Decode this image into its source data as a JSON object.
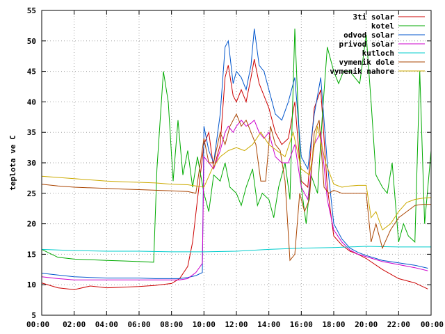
{
  "chart_data": {
    "type": "line",
    "ylabel": "teplota ve C",
    "xlim": [
      "00:00",
      "24:00"
    ],
    "ylim": [
      5,
      55
    ],
    "y_ticks": [
      5,
      10,
      15,
      20,
      25,
      30,
      35,
      40,
      45,
      50,
      55
    ],
    "x_ticks": [
      "00:00",
      "02:00",
      "04:00",
      "06:00",
      "08:00",
      "10:00",
      "12:00",
      "14:00",
      "16:00",
      "18:00",
      "20:00",
      "22:00",
      "00:00"
    ],
    "legend_position": "top-right",
    "series": [
      {
        "name": "3ti solar",
        "color": "#cc0000",
        "x": [
          0,
          1,
          2,
          3,
          4,
          5,
          6,
          7,
          8,
          8.5,
          9,
          9.3,
          9.6,
          10,
          10.3,
          10.6,
          11,
          11.3,
          11.5,
          11.8,
          12,
          12.3,
          12.6,
          12.9,
          13.1,
          13.4,
          13.7,
          14,
          14.4,
          14.8,
          15.2,
          15.6,
          16,
          16.4,
          16.8,
          17.2,
          17.6,
          18,
          18.5,
          19,
          19.5,
          20,
          21,
          22,
          23,
          23.8
        ],
        "y": [
          10.3,
          9.5,
          9.2,
          9.8,
          9.5,
          9.6,
          9.7,
          9.9,
          10.2,
          11,
          13,
          17,
          24,
          33,
          35,
          29,
          33,
          44,
          46,
          41,
          40,
          42,
          40,
          44,
          47,
          43,
          41,
          39,
          35,
          33,
          34,
          40,
          27,
          26,
          39,
          42,
          26,
          18,
          16.5,
          15.5,
          15,
          14.3,
          12.5,
          11,
          10.3,
          9.3
        ]
      },
      {
        "name": "kotel",
        "color": "#00aa00",
        "x": [
          0,
          1,
          2,
          3,
          4,
          5,
          6,
          6.9,
          7.1,
          7.5,
          7.8,
          8.1,
          8.4,
          8.7,
          9,
          9.3,
          9.6,
          10,
          10.3,
          10.6,
          11,
          11.3,
          11.6,
          12,
          12.3,
          12.6,
          13,
          13.3,
          13.6,
          14,
          14.3,
          14.6,
          15,
          15.3,
          15.6,
          16,
          16.3,
          16.6,
          17,
          17.3,
          17.6,
          18,
          18.3,
          18.6,
          19,
          19.3,
          19.6,
          20,
          20.3,
          20.6,
          21,
          21.3,
          21.6,
          22,
          22.3,
          22.6,
          23,
          23.3,
          23.6,
          24
        ],
        "y": [
          15.8,
          14.5,
          14.2,
          14.1,
          14,
          13.9,
          13.8,
          13.7,
          29,
          45,
          40,
          27,
          37,
          28,
          32,
          26,
          31,
          25,
          22,
          28,
          27,
          30,
          26,
          25,
          23,
          26,
          29,
          23,
          25,
          24,
          21,
          26,
          30,
          24,
          52,
          26,
          20,
          28,
          25,
          38,
          49,
          45,
          43,
          45,
          45,
          44,
          43,
          51,
          40,
          28,
          26,
          25,
          30,
          17,
          20,
          18,
          17,
          45,
          20,
          32
        ]
      },
      {
        "name": "odvod solar",
        "color": "#0055cc",
        "x": [
          0,
          1,
          2,
          3,
          4,
          5,
          6,
          7,
          8,
          8.5,
          9,
          9.5,
          9.9,
          10,
          10.3,
          10.6,
          11,
          11.3,
          11.5,
          11.8,
          12,
          12.3,
          12.6,
          12.9,
          13.1,
          13.4,
          13.7,
          14,
          14.4,
          14.8,
          15.2,
          15.6,
          16,
          16.4,
          16.8,
          17.2,
          17.6,
          18,
          18.5,
          19,
          19.5,
          20,
          21,
          22,
          23,
          23.8
        ],
        "y": [
          11.9,
          11.6,
          11.3,
          11.2,
          11.1,
          11.1,
          11.1,
          11,
          11,
          11,
          11.2,
          11.5,
          12,
          36,
          32,
          30,
          38,
          49,
          50,
          43,
          45,
          44,
          42,
          46,
          52,
          46,
          45,
          42,
          38,
          37,
          40,
          44,
          31,
          29,
          38,
          44,
          30,
          20,
          17.5,
          16,
          15.3,
          14.8,
          14,
          13.6,
          13.2,
          12.7
        ]
      },
      {
        "name": "privod solar",
        "color": "#cc00cc",
        "x": [
          0,
          1,
          2,
          3,
          4,
          5,
          6,
          7,
          8,
          8.5,
          9,
          9.5,
          9.9,
          10,
          10.3,
          10.6,
          11,
          11.3,
          11.5,
          11.8,
          12,
          12.3,
          12.6,
          12.9,
          13.1,
          13.4,
          13.7,
          14,
          14.4,
          14.8,
          15.2,
          15.6,
          16,
          16.4,
          16.8,
          17.2,
          17.6,
          18,
          18.5,
          19,
          19.5,
          20,
          21,
          22,
          23,
          23.8
        ],
        "y": [
          11.3,
          11,
          10.8,
          10.8,
          10.8,
          10.8,
          10.8,
          10.8,
          10.8,
          10.8,
          11,
          12,
          13.5,
          31,
          30,
          29,
          32,
          35,
          36,
          35,
          36,
          37,
          36,
          36.5,
          37,
          35,
          34,
          35,
          31,
          30,
          30,
          33,
          26,
          24,
          33,
          35,
          24,
          19,
          17,
          15.7,
          15,
          14.6,
          13.8,
          13.3,
          12.8,
          12.3
        ]
      },
      {
        "name": "kutloch",
        "color": "#00cccc",
        "x": [
          0,
          2,
          4,
          6,
          8,
          10,
          12,
          14,
          16,
          18,
          20,
          22,
          24
        ],
        "y": [
          15.8,
          15.6,
          15.5,
          15.5,
          15.4,
          15.4,
          15.5,
          15.8,
          16,
          16.1,
          16.3,
          16.2,
          16.2
        ]
      },
      {
        "name": "vymenik dole",
        "color": "#aa4400",
        "x": [
          0,
          1,
          2,
          3,
          4,
          5,
          6,
          7,
          8,
          9,
          9.5,
          10,
          10.3,
          10.6,
          11,
          11.3,
          11.6,
          12,
          12.3,
          12.6,
          12.9,
          13.2,
          13.5,
          13.8,
          14.1,
          14.4,
          14.7,
          15,
          15.3,
          15.6,
          15.9,
          16.2,
          16.5,
          16.8,
          17.1,
          17.4,
          17.7,
          18,
          18.5,
          19,
          19.5,
          20,
          20.3,
          20.6,
          21,
          21.5,
          22,
          22.5,
          23,
          23.5,
          24
        ],
        "y": [
          26.5,
          26.2,
          26,
          25.9,
          25.8,
          25.7,
          25.6,
          25.5,
          25.4,
          25.3,
          25,
          34,
          30,
          30,
          35,
          33,
          36,
          38,
          36,
          37,
          35,
          33,
          27,
          27,
          36,
          33,
          32,
          27,
          14,
          15,
          25,
          22,
          24,
          35,
          37,
          26,
          25,
          25.5,
          25,
          25,
          25,
          25,
          17,
          20,
          16,
          19,
          21,
          22,
          23,
          23.2,
          23.2
        ]
      },
      {
        "name": "vymenik nahore",
        "color": "#ccaa00",
        "x": [
          0,
          1,
          2,
          3,
          4,
          5,
          6,
          7,
          8,
          9,
          10,
          10.5,
          11,
          11.5,
          12,
          12.5,
          13,
          13.5,
          14,
          14.5,
          15,
          15.5,
          16,
          16.5,
          17,
          17.5,
          18,
          18.5,
          19,
          19.5,
          20,
          20.3,
          20.6,
          21,
          21.5,
          22,
          22.5,
          23,
          23.5,
          24
        ],
        "y": [
          27.8,
          27.6,
          27.4,
          27.2,
          27,
          26.9,
          26.8,
          26.7,
          26.5,
          26.4,
          26,
          29,
          31,
          32,
          32.5,
          32,
          33,
          35,
          33,
          32,
          31,
          35,
          29,
          28,
          36,
          30,
          26.5,
          26,
          26.2,
          26.3,
          26.3,
          21,
          22,
          19,
          20,
          22,
          23.5,
          24,
          24.2,
          24.3
        ]
      }
    ]
  }
}
